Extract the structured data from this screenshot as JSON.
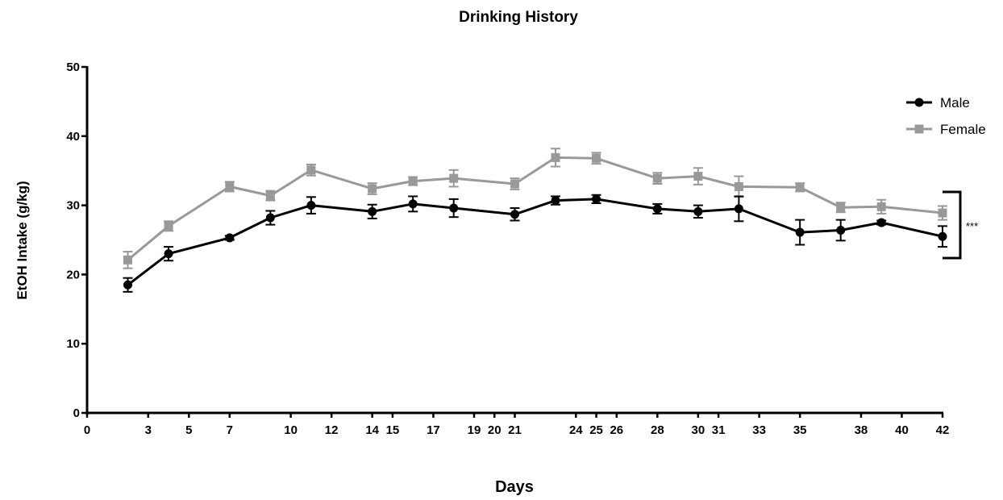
{
  "chart_data": {
    "type": "line",
    "title": "Drinking History",
    "xlabel": "Days",
    "ylabel": "EtOH Intake (g/kg)",
    "xlim": [
      0,
      42
    ],
    "ylim": [
      0,
      50
    ],
    "xticks": [
      0,
      3,
      5,
      7,
      10,
      12,
      14,
      15,
      17,
      19,
      20,
      21,
      24,
      25,
      26,
      28,
      30,
      31,
      33,
      35,
      38,
      40,
      42
    ],
    "yticks": [
      0,
      10,
      20,
      30,
      40,
      50
    ],
    "legend_position": "top-right",
    "significance": "***",
    "series": [
      {
        "name": "Male",
        "color": "#000000",
        "marker": "circle",
        "x": [
          2,
          4,
          7,
          9,
          11,
          14,
          16,
          18,
          21,
          23,
          25,
          28,
          30,
          32,
          35,
          37,
          39,
          42
        ],
        "y": [
          18.5,
          23.0,
          25.3,
          28.2,
          30.0,
          29.1,
          30.2,
          29.6,
          28.7,
          30.7,
          30.9,
          29.5,
          29.1,
          29.5,
          26.1,
          26.4,
          27.5,
          25.5
        ],
        "error": [
          1.0,
          1.0,
          0.3,
          1.0,
          1.2,
          1.0,
          1.1,
          1.3,
          0.9,
          0.6,
          0.6,
          0.7,
          0.9,
          1.8,
          1.8,
          1.5,
          0.3,
          1.5
        ]
      },
      {
        "name": "Female",
        "color": "#999999",
        "marker": "square",
        "x": [
          2,
          4,
          7,
          9,
          11,
          14,
          16,
          18,
          21,
          23,
          25,
          28,
          30,
          32,
          35,
          37,
          39,
          42
        ],
        "y": [
          22.1,
          27.0,
          32.7,
          31.4,
          35.1,
          32.4,
          33.5,
          33.9,
          33.1,
          36.9,
          36.8,
          33.9,
          34.2,
          32.7,
          32.6,
          29.7,
          29.8,
          28.9
        ],
        "error": [
          1.2,
          0.7,
          0.7,
          0.7,
          0.8,
          0.8,
          0.6,
          1.2,
          0.8,
          1.3,
          0.8,
          0.8,
          1.2,
          1.5,
          0.6,
          0.7,
          1.0,
          1.0
        ]
      }
    ]
  }
}
